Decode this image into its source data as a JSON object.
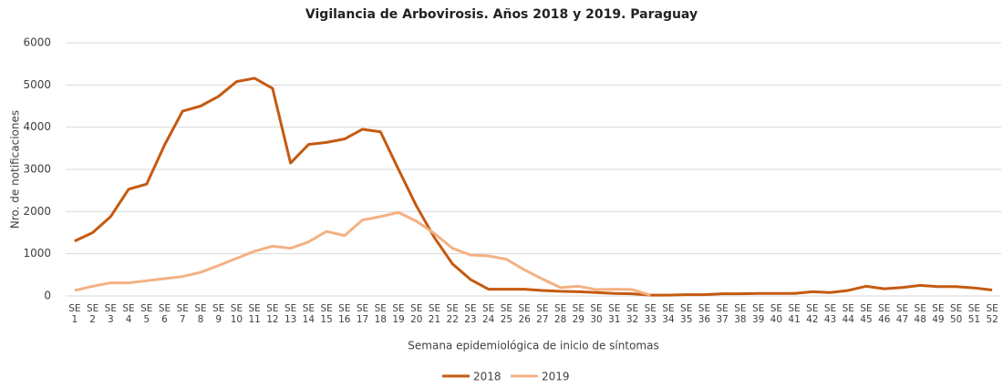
{
  "chart_data": {
    "type": "line",
    "title": "Vigilancia de Arbovirosis. Años 2018 y 2019. Paraguay",
    "x_label": "Semana epidemiológica de inicio de síntomas",
    "y_label": "Nro. de notificaciones",
    "categories": [
      "SE 1",
      "SE 2",
      "SE 3",
      "SE 4",
      "SE 5",
      "SE 6",
      "SE 7",
      "SE 8",
      "SE 9",
      "SE 10",
      "SE 11",
      "SE 12",
      "SE 13",
      "SE 14",
      "SE 15",
      "SE 16",
      "SE 17",
      "SE 18",
      "SE 19",
      "SE 20",
      "SE 21",
      "SE 22",
      "SE 23",
      "SE 24",
      "SE 25",
      "SE 26",
      "SE 27",
      "SE 28",
      "SE 29",
      "SE 30",
      "SE 31",
      "SE 32",
      "SE 33",
      "SE 34",
      "SE 35",
      "SE 36",
      "SE 37",
      "SE 38",
      "SE 39",
      "SE 40",
      "SE 41",
      "SE 42",
      "SE 43",
      "SE 44",
      "SE 45",
      "SE 46",
      "SE 47",
      "SE 48",
      "SE 49",
      "SE 50",
      "SE 51",
      "SE 52"
    ],
    "series": [
      {
        "name": "2018",
        "color": "#c55a11",
        "values": [
          1300,
          1500,
          1880,
          2530,
          2650,
          3580,
          4380,
          4500,
          4730,
          5080,
          5160,
          4920,
          3150,
          3590,
          3640,
          3720,
          3950,
          3890,
          3000,
          2130,
          1380,
          760,
          390,
          160,
          160,
          160,
          130,
          110,
          100,
          80,
          60,
          50,
          20,
          20,
          30,
          30,
          50,
          50,
          60,
          60,
          60,
          100,
          80,
          130,
          230,
          170,
          200,
          250,
          220,
          220,
          190,
          140
        ]
      },
      {
        "name": "2019",
        "color": "#f4b183",
        "values": [
          130,
          230,
          310,
          310,
          360,
          410,
          460,
          560,
          720,
          890,
          1060,
          1180,
          1130,
          1280,
          1530,
          1430,
          1800,
          1880,
          1980,
          1770,
          1480,
          1130,
          970,
          950,
          870,
          620,
          400,
          200,
          230,
          150,
          160,
          150,
          20,
          null,
          null,
          null,
          null,
          null,
          null,
          null,
          null,
          null,
          null,
          null,
          null,
          null,
          null,
          null,
          null,
          null,
          null,
          null
        ]
      }
    ],
    "ylim": [
      0,
      6000
    ],
    "yticks": [
      0,
      1000,
      2000,
      3000,
      4000,
      5000,
      6000
    ],
    "grid": true,
    "legend": "bottom"
  }
}
